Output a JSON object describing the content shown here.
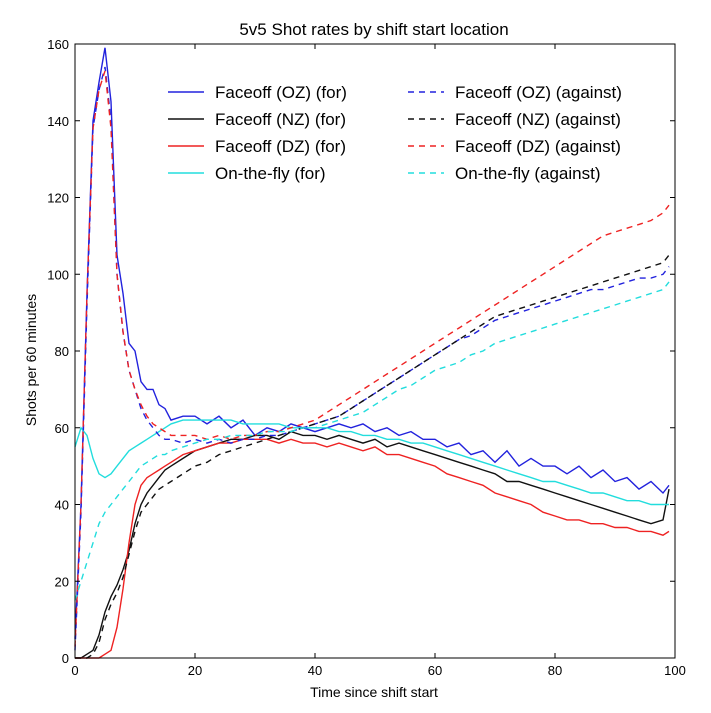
{
  "chart_data": {
    "type": "line",
    "title": "5v5 Shot rates by shift start location",
    "xlabel": "Time since shift start",
    "ylabel": "Shots per 60 minutes",
    "xlim": [
      0,
      100
    ],
    "ylim": [
      0,
      160
    ],
    "xticks": [
      0,
      20,
      40,
      60,
      80,
      100
    ],
    "yticks": [
      0,
      20,
      40,
      60,
      80,
      100,
      120,
      140,
      160
    ],
    "grid": false,
    "legend_position": "top-right",
    "series": [
      {
        "name": "Faceoff (OZ) (for)",
        "color": "#2222dd",
        "style": "solid",
        "x": [
          0,
          1,
          2,
          3,
          4,
          5,
          6,
          7,
          8,
          9,
          10,
          11,
          12,
          13,
          14,
          15,
          16,
          18,
          20,
          22,
          24,
          26,
          28,
          30,
          32,
          34,
          36,
          38,
          40,
          42,
          44,
          46,
          48,
          50,
          52,
          54,
          56,
          58,
          60,
          62,
          64,
          66,
          68,
          70,
          72,
          74,
          76,
          78,
          80,
          82,
          84,
          86,
          88,
          90,
          92,
          94,
          96,
          98,
          99
        ],
        "y": [
          5,
          40,
          95,
          140,
          150,
          159,
          145,
          105,
          95,
          82,
          80,
          72,
          70,
          70,
          66,
          65,
          62,
          63,
          63,
          61,
          63,
          60,
          62,
          58,
          60,
          59,
          61,
          60,
          59,
          60,
          61,
          60,
          61,
          59,
          60,
          58,
          59,
          57,
          57,
          55,
          56,
          53,
          54,
          51,
          54,
          50,
          52,
          50,
          50,
          48,
          50,
          47,
          49,
          46,
          47,
          44,
          46,
          43,
          45
        ]
      },
      {
        "name": "Faceoff (NZ) (for)",
        "color": "#111111",
        "style": "solid",
        "x": [
          0,
          1,
          2,
          3,
          4,
          5,
          6,
          7,
          8,
          9,
          10,
          11,
          12,
          13,
          14,
          15,
          16,
          18,
          20,
          22,
          24,
          26,
          28,
          30,
          32,
          34,
          36,
          38,
          40,
          42,
          44,
          46,
          48,
          50,
          52,
          54,
          56,
          58,
          60,
          62,
          64,
          66,
          68,
          70,
          72,
          74,
          76,
          78,
          80,
          82,
          84,
          86,
          88,
          90,
          92,
          94,
          96,
          98,
          99
        ],
        "y": [
          0,
          0,
          1,
          2,
          6,
          12,
          16,
          19,
          23,
          28,
          35,
          40,
          43,
          45,
          47,
          49,
          50,
          52,
          54,
          55,
          56,
          57,
          57,
          58,
          58,
          57,
          59,
          58,
          58,
          57,
          58,
          57,
          56,
          57,
          55,
          56,
          55,
          54,
          53,
          52,
          51,
          50,
          49,
          48,
          46,
          46,
          45,
          44,
          43,
          42,
          41,
          40,
          39,
          38,
          37,
          36,
          35,
          36,
          44
        ]
      },
      {
        "name": "Faceoff (DZ) (for)",
        "color": "#ee2222",
        "style": "solid",
        "x": [
          0,
          1,
          2,
          3,
          4,
          5,
          6,
          7,
          8,
          9,
          10,
          11,
          12,
          13,
          14,
          15,
          16,
          18,
          20,
          22,
          24,
          26,
          28,
          30,
          32,
          34,
          36,
          38,
          40,
          42,
          44,
          46,
          48,
          50,
          52,
          54,
          56,
          58,
          60,
          62,
          64,
          66,
          68,
          70,
          72,
          74,
          76,
          78,
          80,
          82,
          84,
          86,
          88,
          90,
          92,
          94,
          96,
          98,
          99
        ],
        "y": [
          0,
          0,
          0,
          0,
          0,
          1,
          2,
          8,
          18,
          30,
          40,
          45,
          47,
          48,
          49,
          50,
          51,
          53,
          54,
          55,
          56,
          56,
          57,
          57,
          57,
          56,
          57,
          56,
          56,
          55,
          56,
          55,
          54,
          55,
          53,
          53,
          52,
          51,
          50,
          48,
          47,
          46,
          45,
          43,
          42,
          41,
          40,
          38,
          37,
          36,
          36,
          35,
          35,
          34,
          34,
          33,
          33,
          32,
          33
        ]
      },
      {
        "name": "On-the-fly (for)",
        "color": "#22dddd",
        "style": "solid",
        "x": [
          0,
          1,
          2,
          3,
          4,
          5,
          6,
          7,
          8,
          9,
          10,
          11,
          12,
          13,
          14,
          15,
          16,
          18,
          20,
          22,
          24,
          26,
          28,
          30,
          32,
          34,
          36,
          38,
          40,
          42,
          44,
          46,
          48,
          50,
          52,
          54,
          56,
          58,
          60,
          62,
          64,
          66,
          68,
          70,
          72,
          74,
          76,
          78,
          80,
          82,
          84,
          86,
          88,
          90,
          92,
          94,
          96,
          98,
          99
        ],
        "y": [
          55,
          60,
          58,
          52,
          48,
          47,
          48,
          50,
          52,
          54,
          55,
          56,
          57,
          58,
          59,
          60,
          61,
          62,
          62,
          62,
          62,
          62,
          61,
          61,
          61,
          61,
          60,
          60,
          60,
          60,
          59,
          59,
          58,
          58,
          57,
          57,
          56,
          56,
          55,
          54,
          53,
          52,
          51,
          50,
          49,
          48,
          47,
          46,
          46,
          45,
          44,
          43,
          43,
          42,
          41,
          41,
          40,
          40,
          40
        ]
      },
      {
        "name": "Faceoff (OZ) (against)",
        "color": "#2222dd",
        "style": "dashed",
        "x": [
          0,
          1,
          2,
          3,
          4,
          5,
          6,
          7,
          8,
          9,
          10,
          11,
          12,
          13,
          14,
          15,
          16,
          18,
          20,
          22,
          24,
          26,
          28,
          30,
          32,
          34,
          36,
          38,
          40,
          42,
          44,
          46,
          48,
          50,
          52,
          54,
          56,
          58,
          60,
          62,
          64,
          66,
          68,
          70,
          72,
          74,
          76,
          78,
          80,
          82,
          84,
          86,
          88,
          90,
          92,
          94,
          96,
          98,
          99
        ],
        "y": [
          2,
          38,
          92,
          138,
          148,
          154,
          140,
          100,
          85,
          75,
          70,
          65,
          62,
          60,
          58,
          57,
          57,
          56,
          57,
          56,
          57,
          56,
          57,
          57,
          58,
          58,
          59,
          60,
          61,
          62,
          63,
          65,
          67,
          69,
          71,
          73,
          75,
          77,
          79,
          81,
          83,
          84,
          86,
          88,
          89,
          90,
          91,
          92,
          93,
          94,
          95,
          96,
          96,
          97,
          98,
          99,
          99,
          100,
          102
        ]
      },
      {
        "name": "Faceoff (NZ) (against)",
        "color": "#111111",
        "style": "dashed",
        "x": [
          0,
          1,
          2,
          3,
          4,
          5,
          6,
          7,
          8,
          9,
          10,
          11,
          12,
          13,
          14,
          15,
          16,
          18,
          20,
          22,
          24,
          26,
          28,
          30,
          32,
          34,
          36,
          38,
          40,
          42,
          44,
          46,
          48,
          50,
          52,
          54,
          56,
          58,
          60,
          62,
          64,
          66,
          68,
          70,
          72,
          74,
          76,
          78,
          80,
          82,
          84,
          86,
          88,
          90,
          92,
          94,
          96,
          98,
          99
        ],
        "y": [
          0,
          0,
          0,
          1,
          4,
          10,
          14,
          17,
          21,
          27,
          33,
          38,
          40,
          42,
          44,
          45,
          46,
          48,
          50,
          51,
          53,
          54,
          55,
          56,
          57,
          58,
          59,
          60,
          61,
          62,
          63,
          65,
          67,
          69,
          71,
          73,
          75,
          77,
          79,
          81,
          83,
          85,
          87,
          89,
          90,
          91,
          92,
          93,
          94,
          95,
          96,
          97,
          98,
          99,
          100,
          101,
          102,
          103,
          105
        ]
      },
      {
        "name": "Faceoff (DZ) (against)",
        "color": "#ee2222",
        "style": "dashed",
        "x": [
          0,
          1,
          2,
          3,
          4,
          5,
          6,
          7,
          8,
          9,
          10,
          11,
          12,
          13,
          14,
          15,
          16,
          18,
          20,
          22,
          24,
          26,
          28,
          30,
          32,
          34,
          36,
          38,
          40,
          42,
          44,
          46,
          48,
          50,
          52,
          54,
          56,
          58,
          60,
          62,
          64,
          66,
          68,
          70,
          72,
          74,
          76,
          78,
          80,
          82,
          84,
          86,
          88,
          90,
          92,
          94,
          96,
          98,
          99
        ],
        "y": [
          3,
          40,
          95,
          138,
          148,
          153,
          138,
          100,
          85,
          75,
          70,
          66,
          63,
          61,
          60,
          59,
          58,
          58,
          58,
          57,
          58,
          57,
          58,
          58,
          59,
          59,
          60,
          61,
          62,
          64,
          66,
          68,
          70,
          72,
          74,
          76,
          78,
          80,
          82,
          84,
          86,
          88,
          90,
          92,
          94,
          96,
          98,
          100,
          102,
          104,
          106,
          108,
          110,
          111,
          112,
          113,
          114,
          116,
          118
        ]
      },
      {
        "name": "On-the-fly (against)",
        "color": "#22dddd",
        "style": "dashed",
        "x": [
          0,
          1,
          2,
          3,
          4,
          5,
          6,
          7,
          8,
          9,
          10,
          11,
          12,
          13,
          14,
          15,
          16,
          18,
          20,
          22,
          24,
          26,
          28,
          30,
          32,
          34,
          36,
          38,
          40,
          42,
          44,
          46,
          48,
          50,
          52,
          54,
          56,
          58,
          60,
          62,
          64,
          66,
          68,
          70,
          72,
          74,
          76,
          78,
          80,
          82,
          84,
          86,
          88,
          90,
          92,
          94,
          96,
          98,
          99
        ],
        "y": [
          15,
          20,
          25,
          30,
          35,
          38,
          40,
          42,
          44,
          46,
          48,
          50,
          51,
          52,
          53,
          53,
          54,
          55,
          56,
          57,
          57,
          58,
          58,
          58,
          59,
          59,
          59,
          60,
          60,
          61,
          62,
          63,
          64,
          66,
          68,
          70,
          71,
          73,
          75,
          76,
          77,
          79,
          80,
          82,
          83,
          84,
          85,
          86,
          87,
          88,
          89,
          90,
          91,
          92,
          93,
          94,
          95,
          96,
          98
        ]
      }
    ]
  }
}
